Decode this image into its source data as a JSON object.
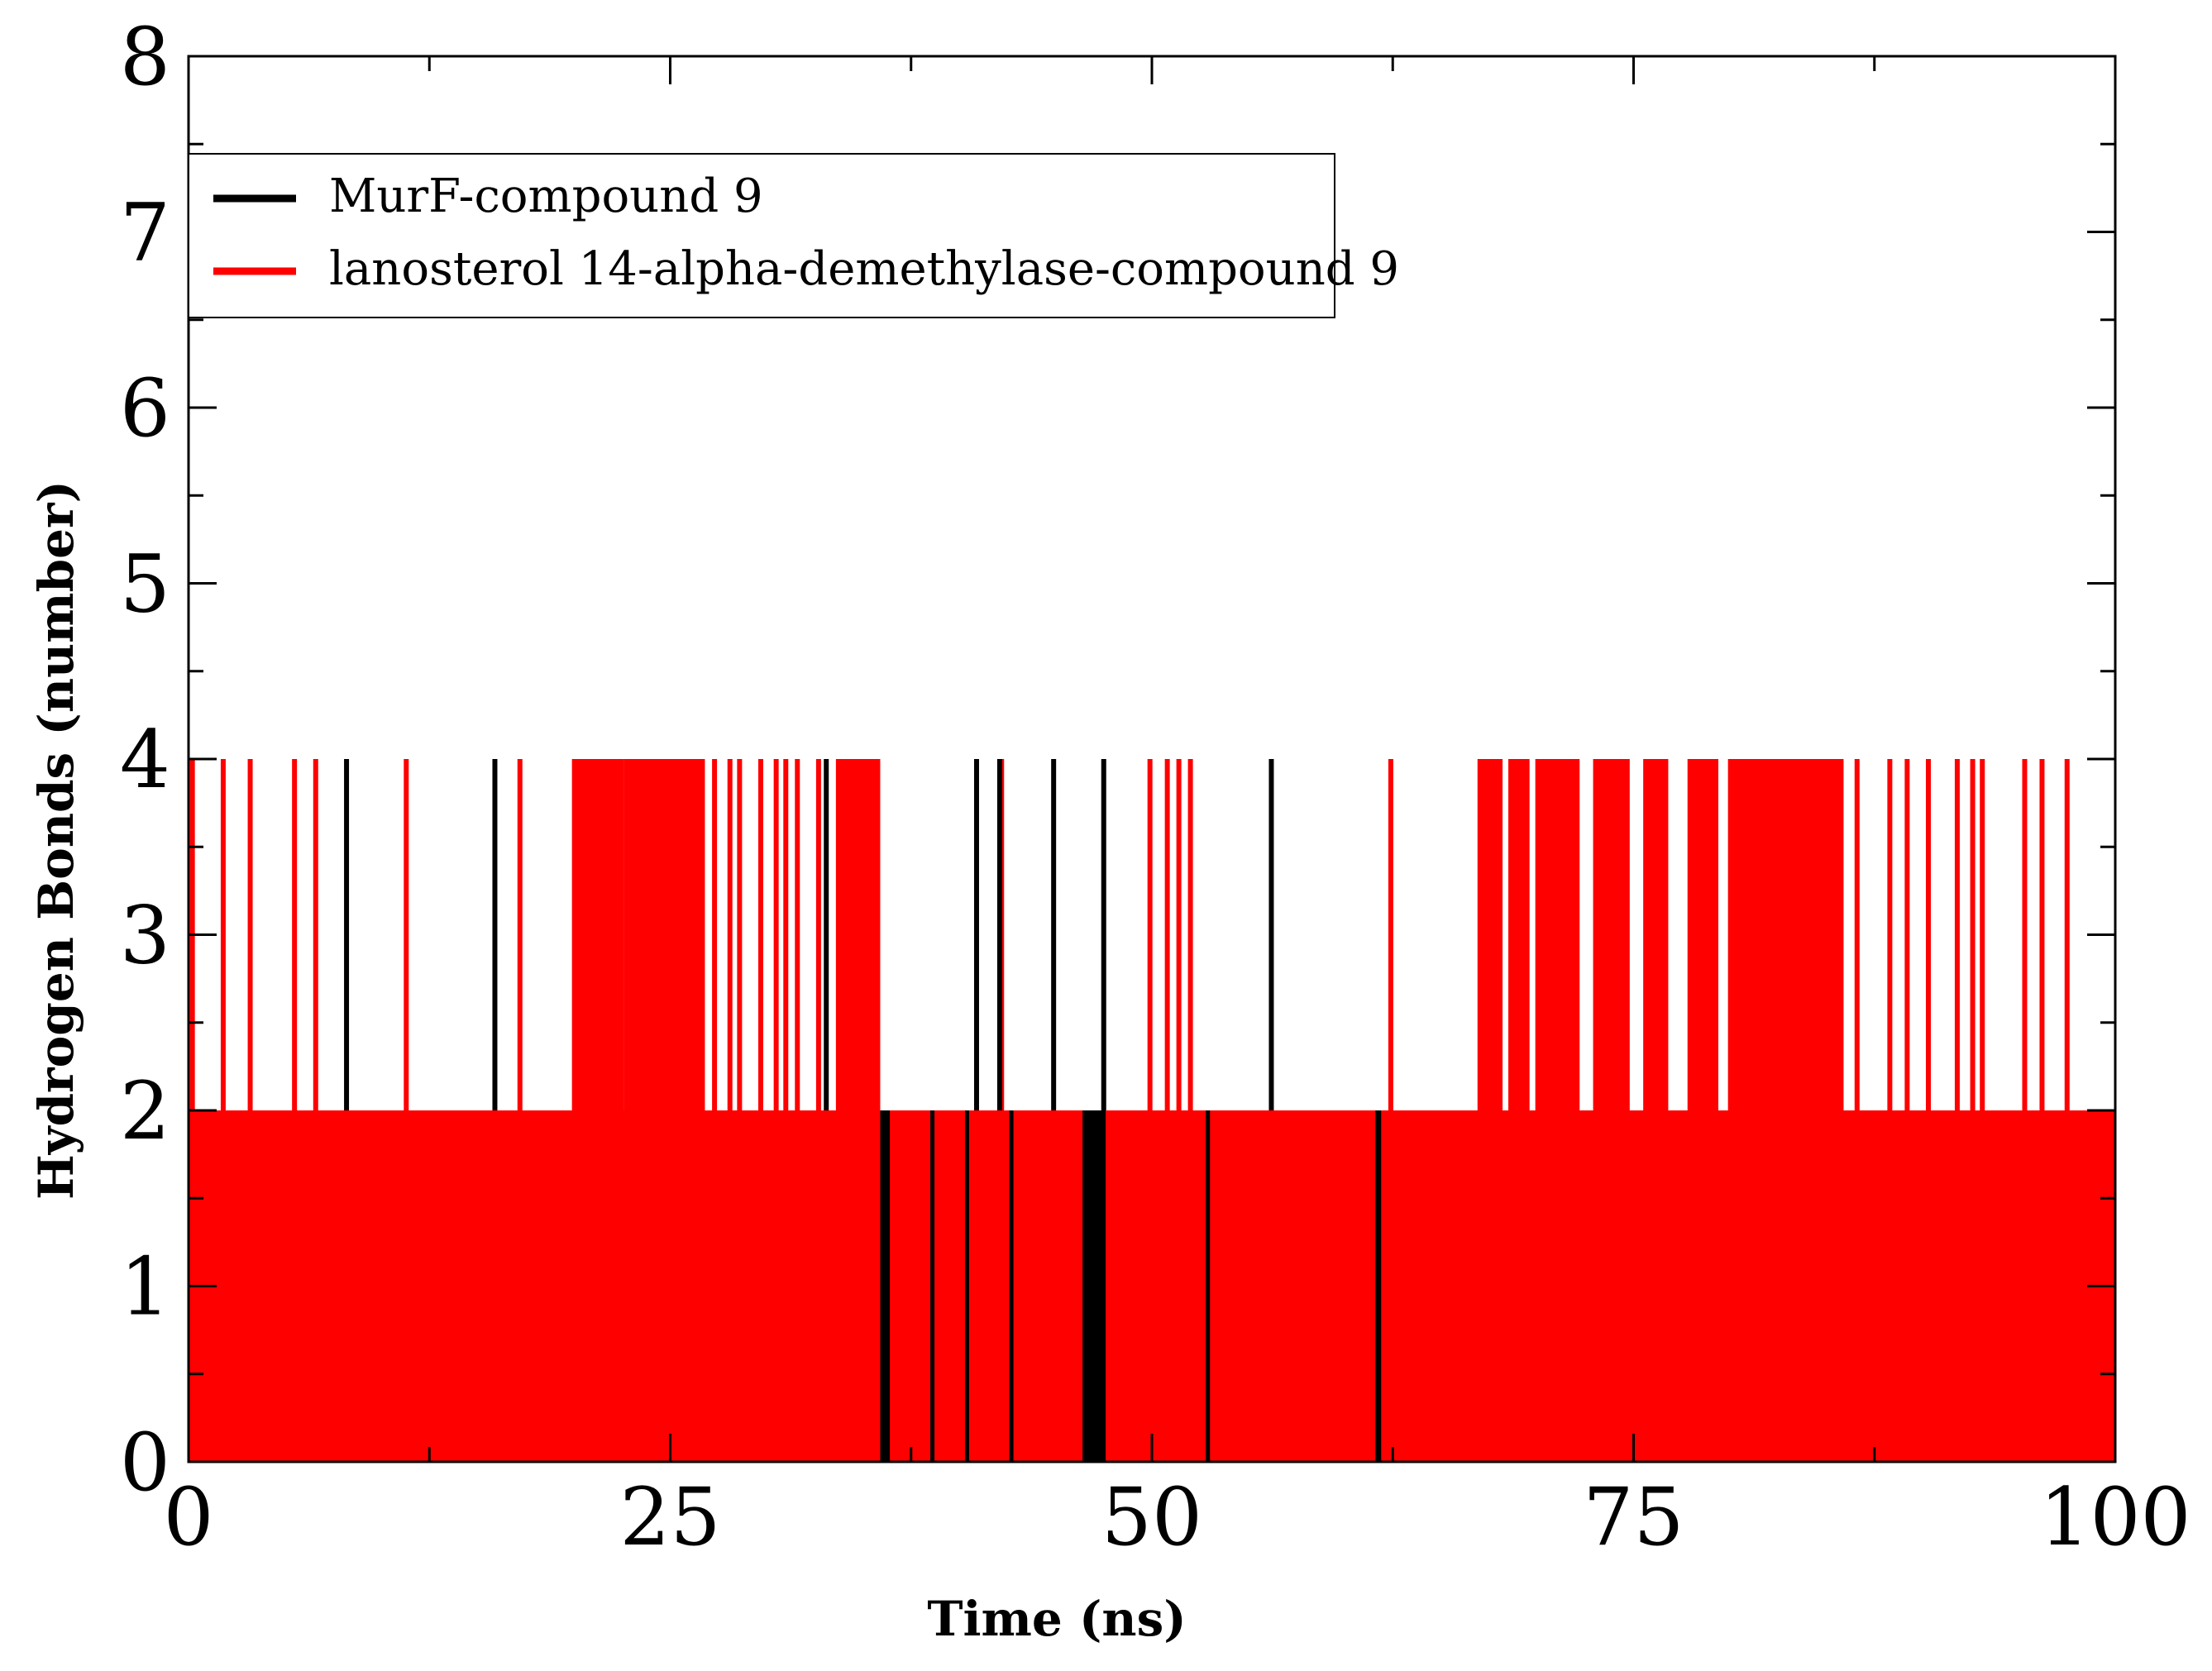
{
  "chart_data": {
    "type": "line",
    "title": "",
    "xlabel": "Time (ns)",
    "ylabel": "Hydrogen Bonds (number)",
    "xlim": [
      0,
      100
    ],
    "ylim": [
      0,
      8
    ],
    "x_ticks": [
      0,
      25,
      50,
      75,
      100
    ],
    "x_tick_labels": [
      "0",
      "25",
      "50",
      "75",
      "100"
    ],
    "y_ticks": [
      0,
      1,
      2,
      3,
      4,
      5,
      6,
      7,
      8
    ],
    "y_tick_labels": [
      "0",
      "1",
      "2",
      "3",
      "4",
      "5",
      "6",
      "7",
      "8"
    ],
    "grid": false,
    "legend_position": "top-left",
    "series": [
      {
        "name": "MurF-compound 9",
        "color": "#000000",
        "baseline_range": [
          0,
          2
        ],
        "spikes_to_4_at": [
          8.2,
          15.9,
          33.1,
          40.9,
          42.1,
          44.9,
          47.5,
          56.2
        ],
        "dense_zero_segments": [
          [
            35.9,
            36.4
          ],
          [
            38.5,
            38.7
          ],
          [
            40.3,
            40.5
          ],
          [
            42.6,
            42.8
          ],
          [
            46.4,
            47.6
          ],
          [
            52.8,
            53.0
          ],
          [
            61.6,
            61.9
          ]
        ]
      },
      {
        "name": "lanosterol 14-alpha-demethylase-compound 9",
        "color": "#ff0000",
        "baseline_range": [
          0,
          2
        ],
        "spikes_to_4_at": [
          0.2,
          1.8,
          3.2,
          5.5,
          6.6,
          11.3,
          17.2,
          27.3,
          28.1,
          28.6,
          29.7,
          30.5,
          31.0,
          31.6,
          32.7,
          42.2,
          49.9,
          50.8,
          51.4,
          52.0,
          62.4,
          86.6,
          88.3,
          89.2,
          90.3,
          91.8,
          92.6,
          93.1,
          95.3,
          96.2,
          97.5
        ],
        "dense_4_segments": [
          [
            19.9,
            22.6
          ],
          [
            22.6,
            26.8
          ],
          [
            33.6,
            35.9
          ],
          [
            66.9,
            68.2
          ],
          [
            68.5,
            69.6
          ],
          [
            69.9,
            72.2
          ],
          [
            72.9,
            74.8
          ],
          [
            75.5,
            76.8
          ],
          [
            77.8,
            79.4
          ],
          [
            79.9,
            85.9
          ]
        ]
      }
    ]
  }
}
